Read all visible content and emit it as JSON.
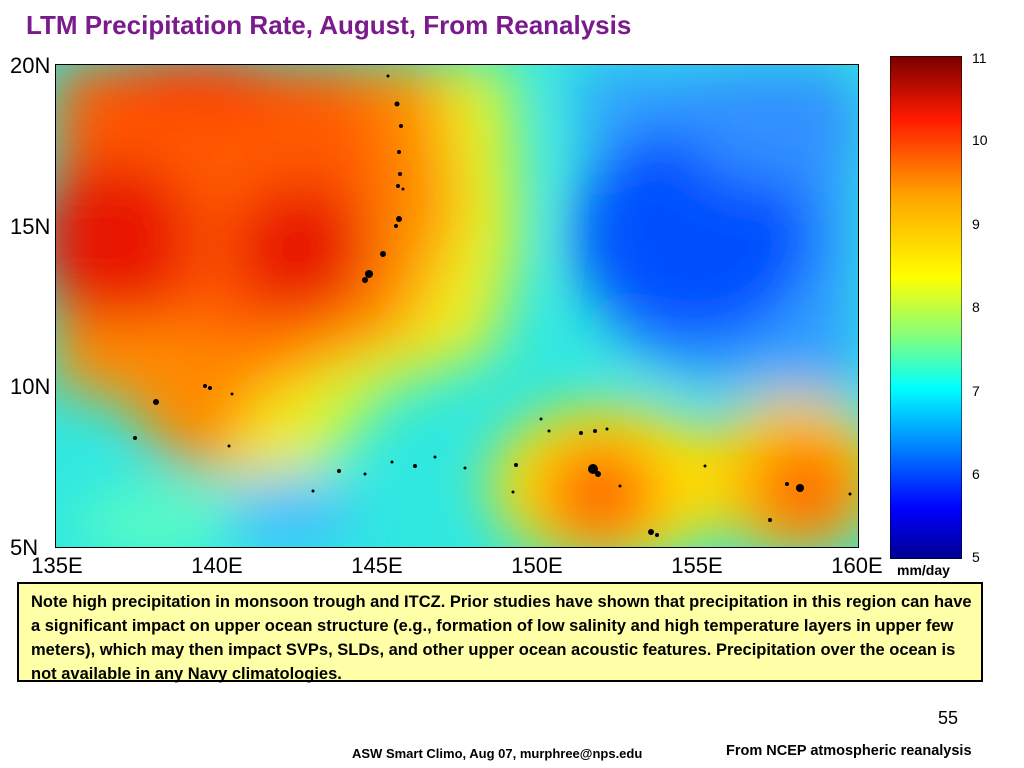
{
  "slide": {
    "title": "LTM Precipitation Rate, August, From Reanalysis",
    "note": "Note high precipitation in monsoon trough and ITCZ.  Prior studies have shown that precipitation in this region can have a significant impact on upper ocean structure (e.g., formation of low salinity and high temperature layers in upper few meters), which may then impact SVPs, SLDs, and other upper ocean acoustic features.  Precipitation over the ocean is not available in any Navy climatologies.",
    "page_number": "55",
    "footer_left": "ASW Smart Climo, Aug 07, murphree@nps.edu",
    "footer_right": "From NCEP atmospheric reanalysis"
  },
  "map": {
    "lat_labels": [
      "20N",
      "15N",
      "10N",
      "5N"
    ],
    "lon_labels": [
      "135E",
      "140E",
      "145E",
      "150E",
      "155E",
      "160E"
    ],
    "colorbar": {
      "ticks": [
        "11",
        "10",
        "9",
        "8",
        "7",
        "6",
        "5"
      ],
      "units": "mm/day",
      "colors": [
        "#7a0000",
        "#ff1a00",
        "#ffa500",
        "#ffff00",
        "#80ff80",
        "#00ffff",
        "#0080ff",
        "#0000ff",
        "#00008f"
      ]
    }
  }
}
